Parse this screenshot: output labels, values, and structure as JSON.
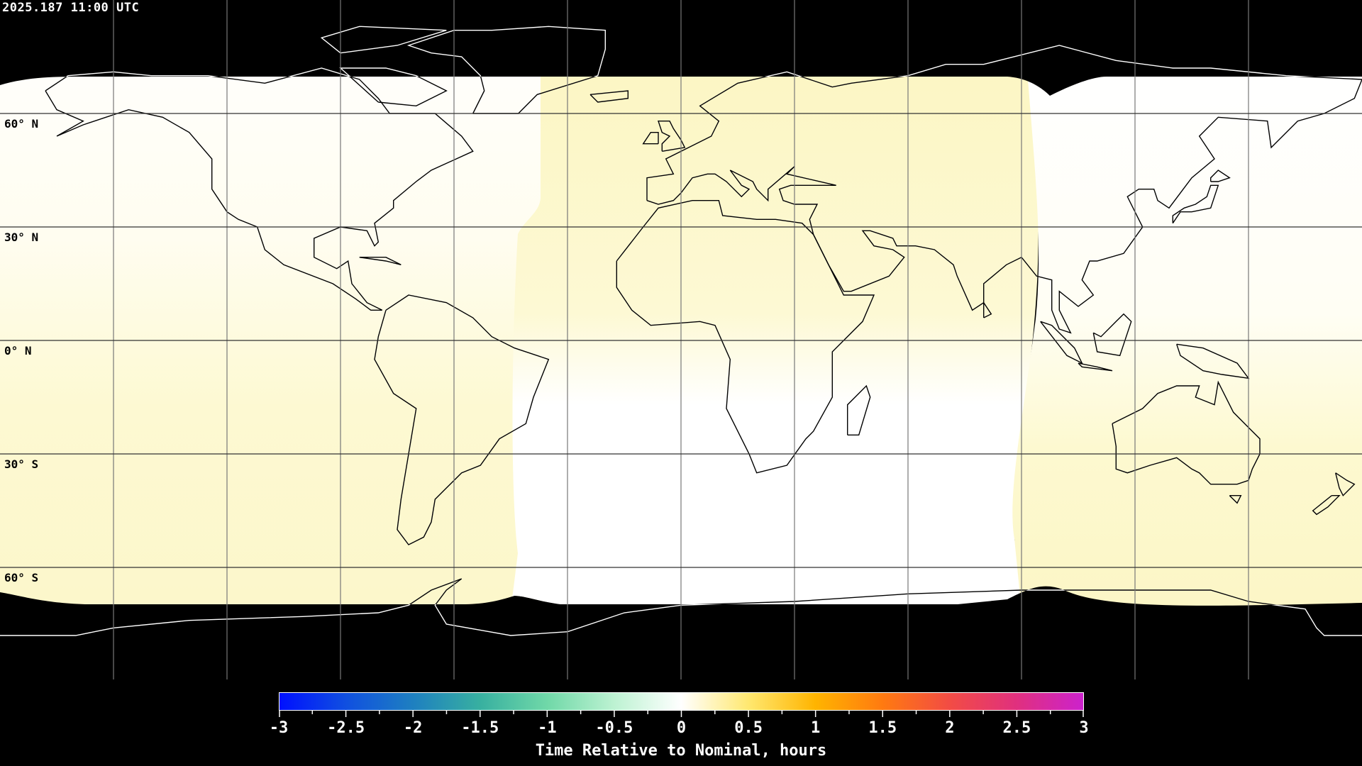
{
  "timestamp": "2025.187 11:00 UTC",
  "map": {
    "projection": "equirectangular",
    "graticule_lon_step_deg": 30,
    "graticule_lat_step_deg": 30,
    "lat_labels": [
      "60° N",
      "30° N",
      "0° N",
      "30° S",
      "60° S"
    ],
    "background_color": "#000000",
    "field_colors": {
      "near_zero": "#ffffff",
      "slightly_positive": "#fdf9cc"
    }
  },
  "colorbar": {
    "title": "Time Relative to Nominal, hours",
    "min": -3,
    "max": 3,
    "tick_labels": [
      "-3",
      "-2.5",
      "-2",
      "-1.5",
      "-1",
      "-0.5",
      "0",
      "0.5",
      "1",
      "1.5",
      "2",
      "2.5",
      "3"
    ],
    "colormap": [
      {
        "value": -3,
        "color": "#0010ff"
      },
      {
        "value": -2.5,
        "color": "#1050e0"
      },
      {
        "value": -2,
        "color": "#1e80c0"
      },
      {
        "value": -1.5,
        "color": "#38b0a0"
      },
      {
        "value": -1,
        "color": "#70d8a8"
      },
      {
        "value": -0.5,
        "color": "#bdf2d2"
      },
      {
        "value": 0,
        "color": "#ffffff"
      },
      {
        "value": 0.5,
        "color": "#ffe870"
      },
      {
        "value": 1,
        "color": "#ffb400"
      },
      {
        "value": 1.5,
        "color": "#ff7a10"
      },
      {
        "value": 2,
        "color": "#f24c44"
      },
      {
        "value": 2.5,
        "color": "#e0307e"
      },
      {
        "value": 3,
        "color": "#cc22cc"
      }
    ]
  }
}
